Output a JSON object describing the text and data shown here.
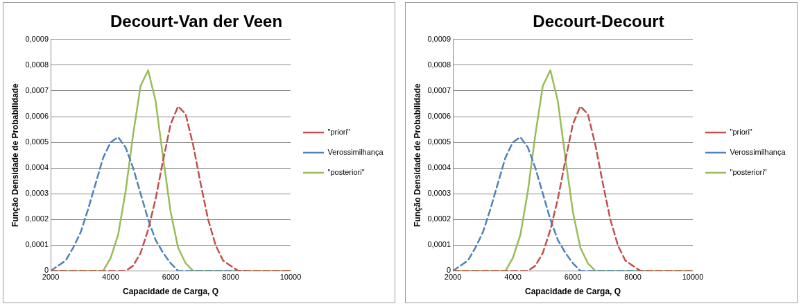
{
  "chart_data": [
    {
      "type": "line",
      "title": "Decourt-Van der Veen",
      "xlabel": "Capacidade de Carga, Q",
      "ylabel": "Função Densidade de Probabilidade",
      "x": [
        2000,
        2250,
        2500,
        2750,
        3000,
        3250,
        3500,
        3750,
        4000,
        4250,
        4500,
        4750,
        5000,
        5250,
        5500,
        5750,
        6000,
        6250,
        6500,
        6750,
        7000,
        7250,
        7500,
        7750,
        8000,
        8250,
        8500,
        8750,
        9000,
        9250,
        9500,
        9750,
        10000
      ],
      "series": [
        {
          "name": "\"priori\"",
          "color": "#c0504d",
          "line_style": "dashed",
          "values": [
            0,
            0,
            0,
            0,
            0,
            0,
            0,
            0,
            0,
            0,
            0,
            2e-05,
            7e-05,
            0.00016,
            0.00028,
            0.00043,
            0.00057,
            0.00064,
            0.00061,
            0.00049,
            0.00034,
            0.0002,
            0.0001,
            4e-05,
            2e-05,
            0,
            0,
            0,
            0,
            0,
            0,
            0,
            0
          ]
        },
        {
          "name": "Verossimilhança",
          "color": "#4f81bd",
          "line_style": "dashed",
          "values": [
            0,
            2e-05,
            4e-05,
            9e-05,
            0.00015,
            0.00024,
            0.00034,
            0.00044,
            0.0005,
            0.00052,
            0.00048,
            0.0004,
            0.0003,
            0.0002,
            0.00012,
            7e-05,
            3e-05,
            0,
            0,
            0,
            0,
            0,
            0,
            0,
            0,
            0,
            0,
            null,
            null,
            null,
            null,
            null,
            null
          ]
        },
        {
          "name": "\"posteriori\"",
          "color": "#9bbb59",
          "line_style": "solid",
          "values": [
            0,
            0,
            0,
            0,
            0,
            0,
            0,
            0,
            5e-05,
            0.00014,
            0.00031,
            0.00053,
            0.00072,
            0.00078,
            0.00066,
            0.00044,
            0.00023,
            9e-05,
            3e-05,
            0,
            0,
            0,
            0,
            0,
            0,
            0,
            0,
            0,
            0,
            0,
            0,
            0,
            0
          ]
        }
      ],
      "xlim": [
        2000,
        10000
      ],
      "xticks": [
        2000,
        4000,
        6000,
        8000,
        10000
      ],
      "ylim": [
        0,
        0.0009
      ],
      "yticks": [
        0,
        {
          "value": 0.0001,
          "label": "0,0001"
        },
        {
          "value": 0.0002,
          "label": "0,0002"
        },
        {
          "value": 0.0003,
          "label": "0,0003"
        },
        {
          "value": 0.0004,
          "label": "0,0004"
        },
        {
          "value": 0.0005,
          "label": "0,0005"
        },
        {
          "value": 0.0006,
          "label": "0,0006"
        },
        {
          "value": 0.0007,
          "label": "0,0007"
        },
        {
          "value": 0.0008,
          "label": "0,0008"
        },
        {
          "value": 0.0009,
          "label": "0,0009"
        }
      ],
      "grid": "y",
      "legend": "right",
      "marker": "none"
    },
    {
      "type": "line",
      "title": "Decourt-Decourt",
      "xlabel": "Capacidade de Carga, Q",
      "ylabel": "Função Densidade de Probabilidade",
      "x": [
        2000,
        2250,
        2500,
        2750,
        3000,
        3250,
        3500,
        3750,
        4000,
        4250,
        4500,
        4750,
        5000,
        5250,
        5500,
        5750,
        6000,
        6250,
        6500,
        6750,
        7000,
        7250,
        7500,
        7750,
        8000,
        8250,
        8500,
        8750,
        9000,
        9250,
        9500,
        9750,
        10000
      ],
      "series": [
        {
          "name": "\"priori\"",
          "color": "#c0504d",
          "line_style": "dashed",
          "values": [
            0,
            0,
            0,
            0,
            0,
            0,
            0,
            0,
            0,
            0,
            0,
            2e-05,
            7e-05,
            0.00016,
            0.00028,
            0.00043,
            0.00057,
            0.00064,
            0.00061,
            0.00049,
            0.00034,
            0.0002,
            0.0001,
            4e-05,
            2e-05,
            0,
            0,
            0,
            0,
            0,
            0,
            0,
            0
          ]
        },
        {
          "name": "Verossimilhança",
          "color": "#4f81bd",
          "line_style": "dashed",
          "values": [
            0,
            2e-05,
            4e-05,
            9e-05,
            0.00015,
            0.00024,
            0.00034,
            0.00044,
            0.0005,
            0.00052,
            0.00048,
            0.0004,
            0.0003,
            0.0002,
            0.00012,
            7e-05,
            3e-05,
            0,
            0,
            0,
            0,
            0,
            0,
            0,
            0,
            0,
            0,
            null,
            null,
            null,
            null,
            null,
            null
          ]
        },
        {
          "name": "\"posteriori\"",
          "color": "#9bbb59",
          "line_style": "solid",
          "values": [
            0,
            0,
            0,
            0,
            0,
            0,
            0,
            0,
            5e-05,
            0.00014,
            0.00031,
            0.00053,
            0.00072,
            0.00078,
            0.00066,
            0.00044,
            0.00023,
            9e-05,
            3e-05,
            0,
            0,
            0,
            0,
            0,
            0,
            0,
            0,
            0,
            0,
            0,
            0,
            0,
            0
          ]
        }
      ],
      "xlim": [
        2000,
        10000
      ],
      "xticks": [
        2000,
        4000,
        6000,
        8000,
        10000
      ],
      "ylim": [
        0,
        0.0009
      ],
      "yticks": [
        0,
        {
          "value": 0.0001,
          "label": "0,0001"
        },
        {
          "value": 0.0002,
          "label": "0,0002"
        },
        {
          "value": 0.0003,
          "label": "0,0003"
        },
        {
          "value": 0.0004,
          "label": "0,0004"
        },
        {
          "value": 0.0005,
          "label": "0,0005"
        },
        {
          "value": 0.0006,
          "label": "0,0006"
        },
        {
          "value": 0.0007,
          "label": "0,0007"
        },
        {
          "value": 0.0008,
          "label": "0,0008"
        },
        {
          "value": 0.0009,
          "label": "0,0009"
        }
      ],
      "grid": "y",
      "legend": "right",
      "marker": "none"
    }
  ]
}
